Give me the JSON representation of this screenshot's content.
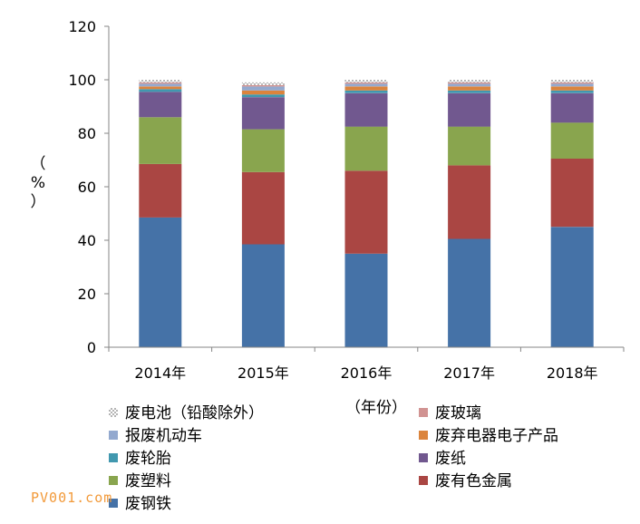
{
  "chart_data": {
    "type": "bar",
    "stacked": true,
    "xlabel": "（年份）",
    "ylabel": "（%）",
    "ylim": [
      0,
      120
    ],
    "yticks": [
      0,
      20,
      40,
      60,
      80,
      100,
      120
    ],
    "categories": [
      "2014年",
      "2015年",
      "2016年",
      "2017年",
      "2018年"
    ],
    "series": [
      {
        "name": "废钢铁",
        "color": "#4572a7",
        "values": [
          48.5,
          38.5,
          35.0,
          40.5,
          45.0
        ]
      },
      {
        "name": "废有色金属",
        "color": "#aa4643",
        "values": [
          20.0,
          27.0,
          31.0,
          27.5,
          25.5
        ]
      },
      {
        "name": "废塑料",
        "color": "#89a54e",
        "values": [
          17.5,
          16.0,
          16.5,
          14.5,
          13.5
        ]
      },
      {
        "name": "废纸",
        "color": "#71588f",
        "values": [
          9.5,
          12.0,
          12.5,
          12.5,
          11.0
        ]
      },
      {
        "name": "废轮胎",
        "color": "#4198af",
        "values": [
          1.0,
          1.0,
          1.0,
          1.0,
          1.0
        ]
      },
      {
        "name": "废弃电器电子产品",
        "color": "#db843d",
        "values": [
          1.0,
          1.5,
          1.5,
          1.5,
          1.5
        ]
      },
      {
        "name": "报废机动车",
        "color": "#93a9cf",
        "values": [
          1.0,
          1.5,
          1.0,
          1.0,
          1.0
        ]
      },
      {
        "name": "废玻璃",
        "color": "#d19392",
        "values": [
          0.5,
          0.5,
          0.5,
          0.5,
          0.5
        ]
      },
      {
        "name": "废电池（铅酸除外）",
        "color": "#b9cd96",
        "values": [
          1.0,
          1.0,
          1.0,
          1.0,
          1.0
        ]
      }
    ],
    "legend": {
      "placement": "bottom",
      "order": [
        "废电池（铅酸除外）",
        "废玻璃",
        "报废机动车",
        "废弃电器电子产品",
        "废轮胎",
        "废纸",
        "废塑料",
        "废有色金属",
        "废钢铁"
      ]
    }
  },
  "watermark": "PV001.com"
}
